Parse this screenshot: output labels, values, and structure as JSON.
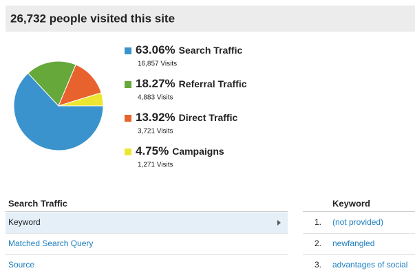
{
  "header": {
    "title": "26,732 people visited this site"
  },
  "chart_data": {
    "type": "pie",
    "categories": [
      "Search Traffic",
      "Referral Traffic",
      "Direct Traffic",
      "Campaigns"
    ],
    "values": [
      63.06,
      18.27,
      13.92,
      4.75
    ],
    "value_labels": [
      "63.06%",
      "18.27%",
      "13.92%",
      "4.75%"
    ],
    "colors": [
      "#3a93cc",
      "#66a83a",
      "#e8622e",
      "#ede630"
    ],
    "visits": [
      "16,857 Visits",
      "4,883 Visits",
      "3,721 Visits",
      "1,271 Visits"
    ]
  },
  "left_table": {
    "title": "Search Traffic",
    "rows": [
      "Keyword",
      "Matched Search Query",
      "Source"
    ]
  },
  "right_table": {
    "header": "Keyword",
    "rows": [
      [
        "1.",
        "(not provided)"
      ],
      [
        "2.",
        "newfangled"
      ],
      [
        "3.",
        "advantages of social"
      ]
    ]
  }
}
